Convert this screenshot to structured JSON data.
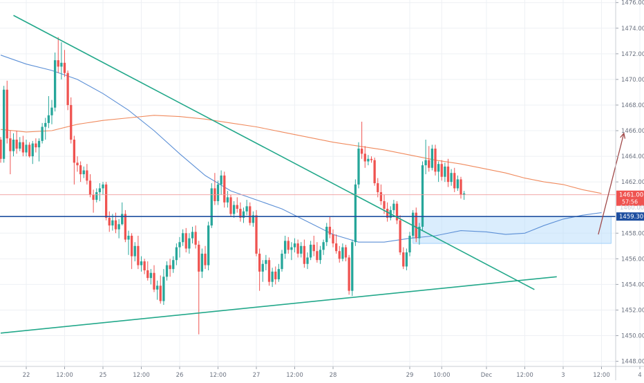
{
  "chart_data": {
    "type": "candlestick",
    "title": "",
    "xlabel": "",
    "ylabel": "",
    "ylim": [
      1447.6,
      1476.2
    ],
    "grid": true,
    "y_ticks": [
      "1476.00",
      "1474.00",
      "1472.00",
      "1470.00",
      "1468.00",
      "1466.00",
      "1464.00",
      "1462.00",
      "1458.00",
      "1456.00",
      "1454.00",
      "1452.00",
      "1450.00",
      "1448.00"
    ],
    "x_ticks": [
      {
        "label": "22",
        "time": 0
      },
      {
        "label": "12:00",
        "time": 12
      },
      {
        "label": "25",
        "time": 24
      },
      {
        "label": "12:00",
        "time": 36
      },
      {
        "label": "26",
        "time": 48
      },
      {
        "label": "12:00",
        "time": 60
      },
      {
        "label": "27",
        "time": 72
      },
      {
        "label": "12:00",
        "time": 84
      },
      {
        "label": "28",
        "time": 96
      },
      {
        "label": "29",
        "time": 120
      },
      {
        "label": "10:00",
        "time": 130
      },
      {
        "label": "Dec",
        "time": 144
      },
      {
        "label": "12:00",
        "time": 156
      },
      {
        "label": "3",
        "time": 168
      },
      {
        "label": "12:00",
        "time": 180
      },
      {
        "label": "4",
        "time": 192
      }
    ],
    "price_labels": [
      {
        "name": "last-price",
        "value": "1461.00",
        "sub": "57:56",
        "y": 1461.0,
        "color": "#ef5350"
      },
      {
        "name": "level",
        "value": "1459.30",
        "y": 1459.3,
        "color": "#1e4fa0"
      },
      {
        "name": "faded",
        "value": "1460.00",
        "y": 1460.0,
        "color": "#c8ccd6"
      }
    ],
    "horizontal_lines": [
      {
        "name": "support-resistance-line",
        "y": 1459.3,
        "color": "#1e4fa0"
      },
      {
        "name": "current-price-line",
        "y": 1461.0,
        "color": "#ef9a9a"
      }
    ],
    "trendlines": [
      {
        "name": "descending-trendline",
        "from": [
          -4,
          1475.0
        ],
        "to": [
          159,
          1453.6
        ],
        "color": "#22a88a"
      },
      {
        "name": "ascending-trendline",
        "from": [
          -8,
          1450.2
        ],
        "to": [
          166,
          1454.6
        ],
        "color": "#22a88a"
      }
    ],
    "zone": {
      "name": "demand-zone",
      "from": [
        121,
        1459.3
      ],
      "to": [
        183,
        1457.2
      ],
      "color": "#bbdefb"
    },
    "arrow": {
      "name": "projection-arrow",
      "from": [
        179,
        1457.9
      ],
      "to": [
        187,
        1465.8
      ],
      "color": "#a04848"
    },
    "moving_averages": [
      {
        "name": "ma-fast",
        "color": "#5b8fd6",
        "points": [
          [
            -8,
            1471.9
          ],
          [
            0,
            1471.2
          ],
          [
            8,
            1470.7
          ],
          [
            16,
            1470.0
          ],
          [
            24,
            1468.9
          ],
          [
            32,
            1467.6
          ],
          [
            40,
            1466.0
          ],
          [
            48,
            1464.2
          ],
          [
            56,
            1462.5
          ],
          [
            64,
            1461.3
          ],
          [
            72,
            1460.6
          ],
          [
            80,
            1459.9
          ],
          [
            88,
            1458.9
          ],
          [
            96,
            1457.9
          ],
          [
            104,
            1457.3
          ],
          [
            112,
            1457.3
          ],
          [
            120,
            1457.6
          ],
          [
            128,
            1457.8
          ],
          [
            136,
            1458.2
          ],
          [
            144,
            1458.1
          ],
          [
            150,
            1457.9
          ],
          [
            156,
            1458.0
          ],
          [
            162,
            1458.6
          ],
          [
            168,
            1459.1
          ],
          [
            174,
            1459.4
          ],
          [
            180,
            1459.6
          ]
        ]
      },
      {
        "name": "ma-slow",
        "color": "#f08a5d",
        "points": [
          [
            -8,
            1466.1
          ],
          [
            0,
            1465.9
          ],
          [
            8,
            1466.0
          ],
          [
            16,
            1466.5
          ],
          [
            24,
            1466.8
          ],
          [
            32,
            1467.0
          ],
          [
            40,
            1467.2
          ],
          [
            48,
            1467.1
          ],
          [
            56,
            1466.9
          ],
          [
            64,
            1466.6
          ],
          [
            72,
            1466.3
          ],
          [
            80,
            1465.9
          ],
          [
            88,
            1465.5
          ],
          [
            96,
            1465.1
          ],
          [
            104,
            1464.8
          ],
          [
            112,
            1464.5
          ],
          [
            120,
            1464.1
          ],
          [
            128,
            1463.7
          ],
          [
            136,
            1463.4
          ],
          [
            144,
            1463.0
          ],
          [
            150,
            1462.7
          ],
          [
            156,
            1462.3
          ],
          [
            162,
            1462.0
          ],
          [
            168,
            1461.8
          ],
          [
            174,
            1461.4
          ],
          [
            180,
            1461.1
          ]
        ]
      }
    ],
    "candles": [
      [
        -8,
        1465.3,
        1465.5,
        1463.5,
        1463.8
      ],
      [
        -7,
        1463.8,
        1469.5,
        1463.5,
        1469.2
      ],
      [
        -6,
        1469.2,
        1469.9,
        1465.0,
        1465.4
      ],
      [
        -5,
        1465.4,
        1466.0,
        1462.6,
        1464.4
      ],
      [
        -4,
        1464.4,
        1465.8,
        1464.0,
        1465.3
      ],
      [
        -3,
        1465.3,
        1466.0,
        1464.2,
        1464.6
      ],
      [
        -2,
        1464.6,
        1465.5,
        1464.4,
        1465.1
      ],
      [
        -1,
        1465.1,
        1465.6,
        1464.0,
        1464.3
      ],
      [
        0,
        1464.3,
        1465.3,
        1464.0,
        1464.9
      ],
      [
        1,
        1464.9,
        1465.1,
        1463.9,
        1464.0
      ],
      [
        2,
        1464.0,
        1465.2,
        1463.4,
        1465.0
      ],
      [
        3,
        1465.0,
        1465.4,
        1464.3,
        1464.7
      ],
      [
        4,
        1464.7,
        1465.4,
        1463.6,
        1465.2
      ],
      [
        5,
        1465.2,
        1466.6,
        1465.0,
        1466.3
      ],
      [
        6,
        1466.3,
        1467.0,
        1465.3,
        1466.6
      ],
      [
        7,
        1466.6,
        1468.7,
        1466.2,
        1467.2
      ],
      [
        8,
        1467.2,
        1468.4,
        1466.5,
        1467.8
      ],
      [
        9,
        1467.8,
        1472.1,
        1467.5,
        1471.5
      ],
      [
        10,
        1471.5,
        1473.3,
        1470.5,
        1471.0
      ],
      [
        11,
        1471.0,
        1472.9,
        1470.0,
        1471.3
      ],
      [
        12,
        1471.3,
        1472.3,
        1470.2,
        1470.5
      ],
      [
        13,
        1470.5,
        1470.7,
        1467.6,
        1468.0
      ],
      [
        14,
        1468.0,
        1468.6,
        1465.0,
        1465.3
      ],
      [
        15,
        1465.3,
        1465.6,
        1461.8,
        1463.5
      ],
      [
        16,
        1463.5,
        1464.0,
        1462.8,
        1463.3
      ],
      [
        17,
        1463.3,
        1463.6,
        1462.0,
        1462.6
      ],
      [
        18,
        1462.6,
        1463.2,
        1462.3,
        1462.9
      ],
      [
        19,
        1462.9,
        1463.4,
        1461.8,
        1462.1
      ],
      [
        20,
        1462.1,
        1462.6,
        1460.8,
        1461.0
      ],
      [
        21,
        1461.0,
        1461.4,
        1459.6,
        1460.6
      ],
      [
        22,
        1460.6,
        1461.5,
        1460.4,
        1461.2
      ],
      [
        23,
        1461.2,
        1461.9,
        1460.5,
        1461.5
      ],
      [
        24,
        1461.5,
        1462.0,
        1461.0,
        1461.8
      ],
      [
        25,
        1461.8,
        1462.0,
        1459.0,
        1459.2
      ],
      [
        26,
        1459.2,
        1459.7,
        1458.1,
        1458.6
      ],
      [
        27,
        1458.6,
        1459.5,
        1458.2,
        1459.0
      ],
      [
        28,
        1459.0,
        1459.6,
        1458.0,
        1458.3
      ],
      [
        29,
        1458.3,
        1459.1,
        1457.6,
        1458.7
      ],
      [
        30,
        1458.7,
        1460.4,
        1458.6,
        1459.5
      ],
      [
        31,
        1459.5,
        1459.8,
        1457.3,
        1457.5
      ],
      [
        32,
        1457.5,
        1458.2,
        1456.3,
        1457.8
      ],
      [
        33,
        1457.8,
        1458.0,
        1455.2,
        1456.2
      ],
      [
        34,
        1456.2,
        1457.3,
        1455.8,
        1457.0
      ],
      [
        35,
        1457.0,
        1457.8,
        1455.2,
        1455.5
      ],
      [
        36,
        1455.5,
        1456.2,
        1455.0,
        1455.8
      ],
      [
        37,
        1455.8,
        1456.0,
        1454.8,
        1455.1
      ],
      [
        38,
        1455.1,
        1455.8,
        1454.3,
        1454.5
      ],
      [
        39,
        1454.5,
        1455.2,
        1454.0,
        1454.9
      ],
      [
        40,
        1454.9,
        1455.5,
        1453.4,
        1453.6
      ],
      [
        41,
        1453.6,
        1454.3,
        1452.8,
        1453.9
      ],
      [
        42,
        1453.9,
        1454.7,
        1452.5,
        1452.7
      ],
      [
        43,
        1452.7,
        1455.2,
        1452.4,
        1454.6
      ],
      [
        44,
        1454.6,
        1455.8,
        1454.3,
        1455.5
      ],
      [
        45,
        1455.5,
        1456.0,
        1454.6,
        1455.2
      ],
      [
        46,
        1455.2,
        1456.2,
        1454.9,
        1455.9
      ],
      [
        47,
        1455.9,
        1457.2,
        1455.5,
        1456.9
      ],
      [
        48,
        1456.9,
        1457.7,
        1456.1,
        1457.3
      ],
      [
        49,
        1457.3,
        1458.3,
        1457.0,
        1458.0
      ],
      [
        50,
        1458.0,
        1458.4,
        1456.5,
        1456.8
      ],
      [
        51,
        1456.8,
        1458.0,
        1456.4,
        1457.6
      ],
      [
        52,
        1457.6,
        1458.5,
        1457.2,
        1458.1
      ],
      [
        53,
        1458.1,
        1458.6,
        1456.8,
        1457.1
      ],
      [
        54,
        1457.1,
        1457.4,
        1450.1,
        1455.0
      ],
      [
        55,
        1455.0,
        1456.8,
        1454.5,
        1456.4
      ],
      [
        56,
        1456.4,
        1457.0,
        1455.2,
        1455.5
      ],
      [
        57,
        1455.5,
        1458.9,
        1455.1,
        1458.6
      ],
      [
        58,
        1458.6,
        1461.9,
        1458.4,
        1461.5
      ],
      [
        59,
        1461.5,
        1462.7,
        1460.2,
        1460.5
      ],
      [
        60,
        1460.5,
        1462.1,
        1460.2,
        1461.8
      ],
      [
        61,
        1461.8,
        1462.9,
        1461.0,
        1462.5
      ],
      [
        62,
        1462.5,
        1462.8,
        1460.0,
        1460.4
      ],
      [
        63,
        1460.4,
        1461.3,
        1460.0,
        1460.8
      ],
      [
        64,
        1460.8,
        1461.0,
        1459.3,
        1459.5
      ],
      [
        65,
        1459.5,
        1460.5,
        1459.2,
        1460.2
      ],
      [
        66,
        1460.2,
        1460.8,
        1459.6,
        1459.9
      ],
      [
        67,
        1459.9,
        1460.4,
        1458.9,
        1459.2
      ],
      [
        68,
        1459.2,
        1460.0,
        1458.8,
        1459.7
      ],
      [
        69,
        1459.7,
        1460.6,
        1459.4,
        1460.1
      ],
      [
        70,
        1460.1,
        1460.4,
        1458.6,
        1458.8
      ],
      [
        71,
        1458.8,
        1459.7,
        1458.5,
        1459.4
      ],
      [
        72,
        1459.4,
        1459.8,
        1456.2,
        1456.4
      ],
      [
        73,
        1456.4,
        1456.8,
        1453.5,
        1455.0
      ],
      [
        74,
        1455.0,
        1455.9,
        1454.2,
        1455.6
      ],
      [
        75,
        1455.6,
        1456.3,
        1455.1,
        1455.9
      ],
      [
        76,
        1455.9,
        1456.1,
        1453.9,
        1454.2
      ],
      [
        77,
        1454.2,
        1455.3,
        1453.8,
        1455.0
      ],
      [
        78,
        1455.0,
        1455.4,
        1454.0,
        1454.4
      ],
      [
        79,
        1454.4,
        1455.6,
        1454.2,
        1455.2
      ],
      [
        80,
        1455.2,
        1456.7,
        1455.0,
        1456.4
      ],
      [
        81,
        1456.4,
        1457.8,
        1456.0,
        1457.4
      ],
      [
        82,
        1457.4,
        1457.7,
        1456.4,
        1456.7
      ],
      [
        83,
        1456.7,
        1457.3,
        1455.9,
        1456.9
      ],
      [
        84,
        1456.9,
        1457.6,
        1456.5,
        1457.2
      ],
      [
        85,
        1457.2,
        1457.5,
        1456.1,
        1456.4
      ],
      [
        86,
        1456.4,
        1457.3,
        1456.1,
        1457.0
      ],
      [
        87,
        1457.0,
        1457.5,
        1455.3,
        1455.6
      ],
      [
        88,
        1455.6,
        1456.5,
        1455.2,
        1456.1
      ],
      [
        89,
        1456.1,
        1457.4,
        1455.9,
        1457.1
      ],
      [
        90,
        1457.1,
        1457.8,
        1456.2,
        1456.6
      ],
      [
        91,
        1456.6,
        1457.3,
        1455.7,
        1455.9
      ],
      [
        92,
        1455.9,
        1457.0,
        1455.6,
        1456.7
      ],
      [
        93,
        1456.7,
        1457.5,
        1456.3,
        1457.3
      ],
      [
        94,
        1457.3,
        1458.8,
        1457.0,
        1458.5
      ],
      [
        95,
        1458.5,
        1459.3,
        1457.6,
        1457.9
      ],
      [
        96,
        1457.9,
        1458.3,
        1456.9,
        1457.2
      ],
      [
        97,
        1457.2,
        1457.9,
        1456.4,
        1456.6
      ],
      [
        98,
        1456.6,
        1457.0,
        1455.7,
        1456.0
      ],
      [
        99,
        1456.0,
        1457.2,
        1455.8,
        1456.9
      ],
      [
        100,
        1456.9,
        1457.1,
        1455.8,
        1456.1
      ],
      [
        101,
        1456.1,
        1456.3,
        1453.2,
        1453.5
      ],
      [
        102,
        1453.5,
        1457.5,
        1453.1,
        1457.3
      ],
      [
        103,
        1457.3,
        1462.2,
        1457.0,
        1461.8
      ],
      [
        104,
        1461.8,
        1465.1,
        1461.5,
        1464.6
      ],
      [
        105,
        1464.6,
        1466.7,
        1463.8,
        1464.2
      ],
      [
        106,
        1464.2,
        1464.8,
        1463.1,
        1463.6
      ],
      [
        107,
        1463.6,
        1464.1,
        1463.3,
        1463.8
      ],
      [
        108,
        1463.8,
        1464.0,
        1463.5,
        1463.7
      ],
      [
        109,
        1463.7,
        1463.9,
        1461.7,
        1461.9
      ],
      [
        110,
        1461.9,
        1462.3,
        1460.8,
        1461.2
      ],
      [
        111,
        1461.2,
        1461.8,
        1460.2,
        1460.5
      ],
      [
        112,
        1460.5,
        1461.0,
        1459.5,
        1459.9
      ],
      [
        113,
        1459.9,
        1460.4,
        1458.9,
        1459.2
      ],
      [
        114,
        1459.2,
        1460.1,
        1459.0,
        1459.8
      ],
      [
        115,
        1459.8,
        1460.6,
        1459.5,
        1460.3
      ],
      [
        116,
        1460.3,
        1460.5,
        1458.7,
        1459.0
      ],
      [
        117,
        1459.0,
        1459.4,
        1456.3,
        1456.5
      ],
      [
        118,
        1456.5,
        1456.9,
        1455.2,
        1455.4
      ],
      [
        119,
        1455.4,
        1456.8,
        1455.1,
        1456.5
      ],
      [
        120,
        1456.5,
        1458.1,
        1456.2,
        1457.8
      ],
      [
        121,
        1457.8,
        1459.8,
        1457.6,
        1459.6
      ],
      [
        122,
        1459.6,
        1460.0,
        1457.3,
        1457.6
      ],
      [
        123,
        1457.6,
        1458.8,
        1457.1,
        1458.5
      ],
      [
        124,
        1458.5,
        1463.6,
        1458.2,
        1463.3
      ],
      [
        125,
        1463.3,
        1465.3,
        1462.6,
        1463.7
      ],
      [
        126,
        1463.7,
        1464.8,
        1462.8,
        1463.1
      ],
      [
        127,
        1463.1,
        1464.9,
        1462.9,
        1464.6
      ],
      [
        128,
        1464.6,
        1464.9,
        1462.5,
        1462.8
      ],
      [
        129,
        1462.8,
        1463.6,
        1462.0,
        1463.4
      ],
      [
        130,
        1463.4,
        1463.7,
        1462.1,
        1462.4
      ],
      [
        131,
        1462.4,
        1463.5,
        1462.0,
        1463.2
      ],
      [
        132,
        1463.2,
        1463.8,
        1461.6,
        1462.0
      ],
      [
        133,
        1462.0,
        1463.0,
        1461.7,
        1462.7
      ],
      [
        134,
        1462.7,
        1463.1,
        1461.2,
        1461.5
      ],
      [
        135,
        1461.5,
        1462.5,
        1461.3,
        1462.2
      ],
      [
        136,
        1462.2,
        1462.4,
        1460.7,
        1461.0
      ],
      [
        137,
        1461.0,
        1461.3,
        1460.6,
        1461.1
      ]
    ]
  }
}
